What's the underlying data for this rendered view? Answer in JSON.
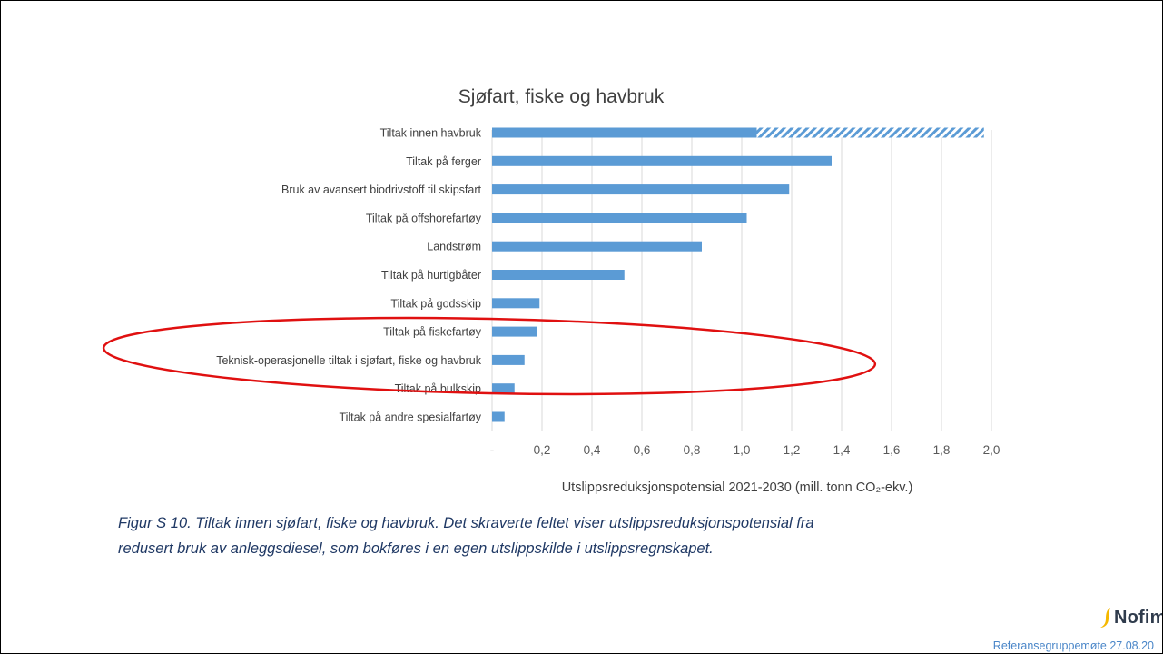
{
  "chart_data": {
    "type": "bar",
    "orientation": "horizontal",
    "stacked": true,
    "title": "Sjøfart, fiske og havbruk",
    "xlabel": "Utslippsreduksjonspotensial 2021-2030 (mill. tonn CO₂-ekv.)",
    "categories": [
      "Tiltak innen havbruk",
      "Tiltak på ferger",
      "Bruk av avansert biodrivstoff til skipsfart",
      "Tiltak på offshorefartøy",
      "Landstrøm",
      "Tiltak på hurtigbåter",
      "Tiltak på godsskip",
      "Tiltak på fiskefartøy",
      "Teknisk-operasjonelle tiltak i sjøfart, fiske og havbruk",
      "Tiltak på bulkskip",
      "Tiltak på andre spesialfartøy"
    ],
    "series": [
      {
        "values": [
          1.06,
          1.36,
          1.19,
          1.02,
          0.84,
          0.53,
          0.19,
          0.18,
          0.13,
          0.09,
          0.05
        ],
        "color": "#5b9bd5",
        "pattern": "solid"
      },
      {
        "values": [
          0.91,
          0,
          0,
          0,
          0,
          0,
          0,
          0,
          0,
          0,
          0
        ],
        "color": "#5b9bd5",
        "pattern": "hatched"
      }
    ],
    "xlim": [
      0,
      2.0
    ],
    "xticks": [
      "-",
      "0,2",
      "0,4",
      "0,6",
      "0,8",
      "1,0",
      "1,2",
      "1,4",
      "1,6",
      "1,8",
      "2,0"
    ],
    "grid": "vertical",
    "legend": "none"
  },
  "caption_lines": [
    "Figur S 10. Tiltak innen sjøfart, fiske og havbruk. Det skraverte feltet viser utslippsreduksjonspotensial fra",
    "redusert bruk av anleggsdiesel, som bokføres i en egen utslippskilde i utslippsregnskapet."
  ],
  "logo": {
    "text": "Nofima",
    "color": "#2f3b4c",
    "mark_color": "#f5b800"
  },
  "footer": {
    "text": "Referansegruppemøte 27.08.20",
    "color": "#4a86c8"
  },
  "highlight": {
    "color": "#e01010",
    "shape": "ellipse"
  }
}
